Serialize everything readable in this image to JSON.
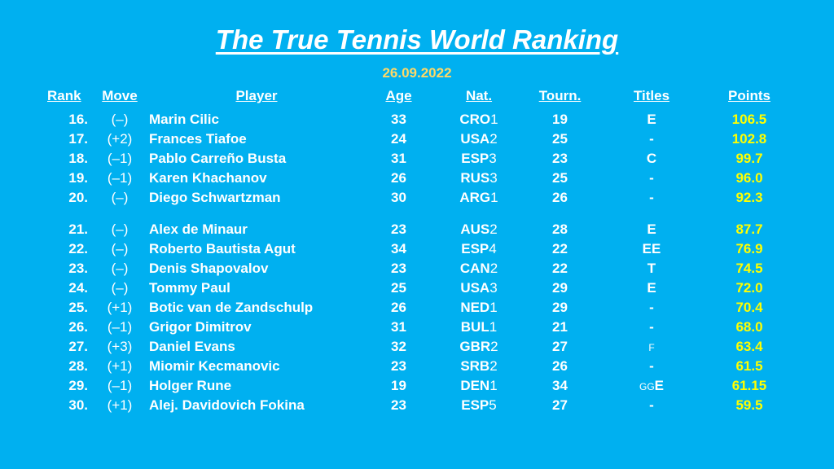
{
  "title": "The True Tennis World Ranking",
  "date": "26.09.2022",
  "headers": {
    "rank": "Rank",
    "move": "Move",
    "player": "Player",
    "age": "Age",
    "nat": "Nat.",
    "tourn": "Tourn.",
    "titles": "Titles",
    "points": "Points"
  },
  "rows": [
    {
      "rank": "16.",
      "move": "(–)",
      "player": "Marin Cilic",
      "age": "33",
      "nat": "CRO",
      "nat_num": "1",
      "tourn": "19",
      "titles_small": "",
      "titles": "E",
      "points": "106.5"
    },
    {
      "rank": "17.",
      "move": "(+2)",
      "player": "Frances Tiafoe",
      "age": "24",
      "nat": "USA",
      "nat_num": "2",
      "tourn": "25",
      "titles_small": "",
      "titles": "-",
      "points": "102.8"
    },
    {
      "rank": "18.",
      "move": "(–1)",
      "player": "Pablo Carreño Busta",
      "age": "31",
      "nat": "ESP",
      "nat_num": "3",
      "tourn": "23",
      "titles_small": "",
      "titles": "C",
      "points": "99.7"
    },
    {
      "rank": "19.",
      "move": "(–1)",
      "player": "Karen Khachanov",
      "age": "26",
      "nat": "RUS",
      "nat_num": "3",
      "tourn": "25",
      "titles_small": "",
      "titles": "-",
      "points": "96.0"
    },
    {
      "rank": "20.",
      "move": "(–)",
      "player": "Diego Schwartzman",
      "age": "30",
      "nat": "ARG",
      "nat_num": "1",
      "tourn": "26",
      "titles_small": "",
      "titles": "-",
      "points": "92.3"
    },
    {
      "rank": "21.",
      "move": "(–)",
      "player": "Alex de Minaur",
      "age": "23",
      "nat": "AUS",
      "nat_num": "2",
      "tourn": "28",
      "titles_small": "",
      "titles": "E",
      "points": "87.7"
    },
    {
      "rank": "22.",
      "move": "(–)",
      "player": "Roberto Bautista Agut",
      "age": "34",
      "nat": "ESP",
      "nat_num": "4",
      "tourn": "22",
      "titles_small": "",
      "titles": "EE",
      "points": "76.9"
    },
    {
      "rank": "23.",
      "move": "(–)",
      "player": "Denis Shapovalov",
      "age": "23",
      "nat": "CAN",
      "nat_num": "2",
      "tourn": "22",
      "titles_small": "",
      "titles": "T",
      "points": "74.5"
    },
    {
      "rank": "24.",
      "move": "(–)",
      "player": "Tommy Paul",
      "age": "25",
      "nat": "USA",
      "nat_num": "3",
      "tourn": "29",
      "titles_small": "",
      "titles": "E",
      "points": "72.0"
    },
    {
      "rank": "25.",
      "move": "(+1)",
      "player": "Botic van de Zandschulp",
      "age": "26",
      "nat": "NED",
      "nat_num": "1",
      "tourn": "29",
      "titles_small": "",
      "titles": "-",
      "points": "70.4"
    },
    {
      "rank": "26.",
      "move": "(–1)",
      "player": "Grigor Dimitrov",
      "age": "31",
      "nat": "BUL",
      "nat_num": "1",
      "tourn": "21",
      "titles_small": "",
      "titles": "-",
      "points": "68.0"
    },
    {
      "rank": "27.",
      "move": "(+3)",
      "player": "Daniel Evans",
      "age": "32",
      "nat": "GBR",
      "nat_num": "2",
      "tourn": "27",
      "titles_small": "F",
      "titles": "",
      "points": "63.4"
    },
    {
      "rank": "28.",
      "move": "(+1)",
      "player": "Miomir Kecmanovic",
      "age": "23",
      "nat": "SRB",
      "nat_num": "2",
      "tourn": "26",
      "titles_small": "",
      "titles": "-",
      "points": "61.5"
    },
    {
      "rank": "29.",
      "move": "(–1)",
      "player": "Holger Rune",
      "age": "19",
      "nat": "DEN",
      "nat_num": "1",
      "tourn": "34",
      "titles_small": "GG",
      "titles": "E",
      "points": "61.15"
    },
    {
      "rank": "30.",
      "move": "(+1)",
      "player": "Alej. Davidovich Fokina",
      "age": "23",
      "nat": "ESP",
      "nat_num": "5",
      "tourn": "27",
      "titles_small": "",
      "titles": "-",
      "points": "59.5"
    }
  ]
}
